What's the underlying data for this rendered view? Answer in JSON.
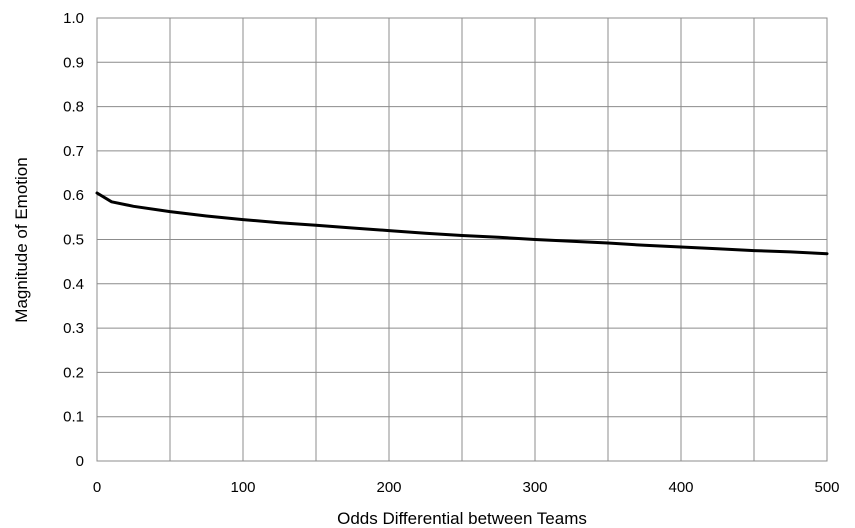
{
  "chart_data": {
    "type": "line",
    "title": "",
    "xlabel": "Odds Differential between Teams",
    "ylabel": "Magnitude of Emotion",
    "xlim": [
      0,
      500
    ],
    "ylim": [
      0,
      1.0
    ],
    "grid": true,
    "legend": "none",
    "x_ticks": [
      "0",
      "100",
      "200",
      "300",
      "400",
      "500"
    ],
    "y_ticks": [
      "0",
      "0.1",
      "0.2",
      "0.3",
      "0.4",
      "0.5",
      "0.6",
      "0.7",
      "0.8",
      "0.9",
      "1.0"
    ],
    "series": [
      {
        "color": "#000000",
        "x": [
          0,
          10,
          25,
          50,
          75,
          100,
          125,
          150,
          175,
          200,
          225,
          250,
          275,
          300,
          325,
          350,
          375,
          400,
          425,
          450,
          475,
          500
        ],
        "y": [
          0.605,
          0.585,
          0.575,
          0.563,
          0.553,
          0.545,
          0.538,
          0.532,
          0.526,
          0.52,
          0.514,
          0.509,
          0.505,
          0.5,
          0.496,
          0.492,
          0.487,
          0.483,
          0.479,
          0.475,
          0.472,
          0.468
        ]
      }
    ]
  }
}
